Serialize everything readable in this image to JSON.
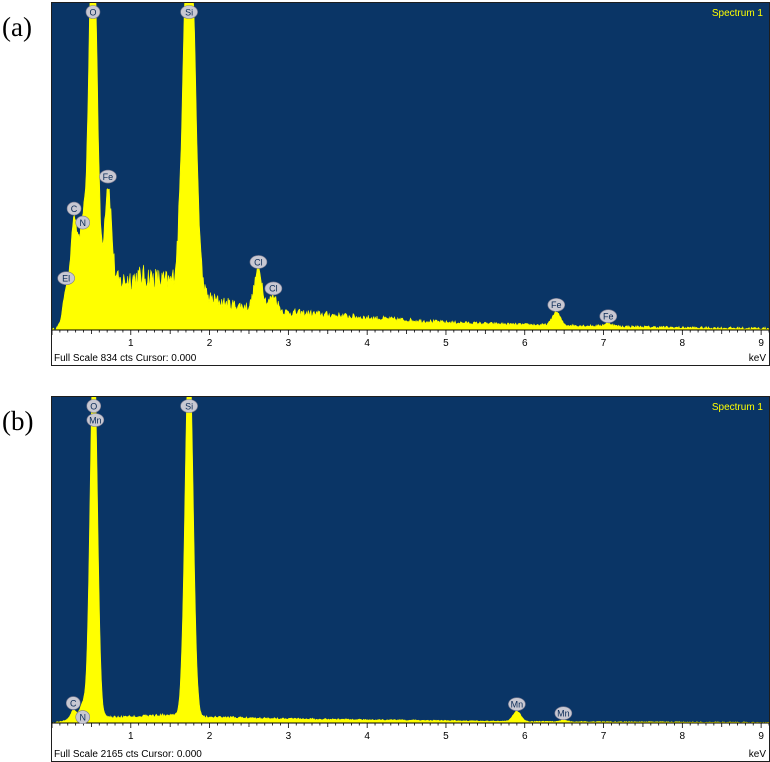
{
  "chart_data": [
    {
      "panel_label": "(a)",
      "type": "area",
      "spectrum_label": "Spectrum 1",
      "xlabel": "keV",
      "footer": "Full Scale 834 cts Cursor: 0.000",
      "xlim": [
        0,
        9.1
      ],
      "ylim": [
        0,
        834
      ],
      "x_ticks": [
        1,
        2,
        3,
        4,
        5,
        6,
        7,
        8,
        9
      ],
      "colors": {
        "plot_bg": "#0a3566",
        "fill": "#ffff00",
        "badge": "#c8c8d2"
      },
      "background": {
        "points": [
          [
            0.2,
            18
          ],
          [
            0.35,
            60
          ],
          [
            0.45,
            50
          ],
          [
            0.8,
            120
          ],
          [
            1.0,
            135
          ],
          [
            1.2,
            140
          ],
          [
            1.5,
            125
          ],
          [
            1.9,
            90
          ],
          [
            2.2,
            70
          ],
          [
            2.6,
            55
          ],
          [
            3.0,
            46
          ],
          [
            3.5,
            40
          ],
          [
            4.0,
            32
          ],
          [
            5.0,
            20
          ],
          [
            6.0,
            14
          ],
          [
            7.0,
            10
          ],
          [
            8.0,
            6
          ],
          [
            9.1,
            4
          ]
        ],
        "noise": 14
      },
      "peaks": [
        {
          "label": "El",
          "x": 0.18,
          "height": 90,
          "width": 0.04
        },
        {
          "label": "C",
          "x": 0.28,
          "height": 250,
          "width": 0.04
        },
        {
          "label": "N",
          "x": 0.39,
          "height": 210,
          "width": 0.04
        },
        {
          "label": "O",
          "x": 0.52,
          "height": 1100,
          "width": 0.05
        },
        {
          "label": "Fe",
          "x": 0.71,
          "height": 280,
          "width": 0.045
        },
        {
          "label": "Si",
          "x": 1.74,
          "height": 1100,
          "width": 0.07
        },
        {
          "label": "Cl",
          "x": 2.62,
          "height": 105,
          "width": 0.05
        },
        {
          "label": "Cl",
          "x": 2.81,
          "height": 40,
          "width": 0.05
        },
        {
          "label": "Fe",
          "x": 6.4,
          "height": 35,
          "width": 0.05
        },
        {
          "label": "Fe",
          "x": 7.06,
          "height": 8,
          "width": 0.05
        }
      ]
    },
    {
      "panel_label": "(b)",
      "type": "area",
      "spectrum_label": "Spectrum 1",
      "xlabel": "keV",
      "footer": "Full Scale 2165 cts Cursor: 0.000",
      "xlim": [
        0,
        9.1
      ],
      "ylim": [
        0,
        2165
      ],
      "x_ticks": [
        1,
        2,
        3,
        4,
        5,
        6,
        7,
        8,
        9
      ],
      "colors": {
        "plot_bg": "#0a3566",
        "fill": "#ffff00",
        "badge": "#c8c8d2"
      },
      "background": {
        "points": [
          [
            0.1,
            10
          ],
          [
            0.4,
            40
          ],
          [
            0.8,
            40
          ],
          [
            1.2,
            48
          ],
          [
            1.5,
            55
          ],
          [
            2.0,
            40
          ],
          [
            3.0,
            30
          ],
          [
            4.0,
            22
          ],
          [
            5.0,
            16
          ],
          [
            6.0,
            10
          ],
          [
            7.0,
            8
          ],
          [
            8.0,
            6
          ],
          [
            9.1,
            4
          ]
        ],
        "noise": 12
      },
      "peaks": [
        {
          "label": "C",
          "x": 0.27,
          "height": 60,
          "width": 0.035
        },
        {
          "label": "N",
          "x": 0.39,
          "height": 90,
          "width": 0.04
        },
        {
          "label": "O",
          "x": 0.53,
          "height": 2600,
          "width": 0.045
        },
        {
          "label": "Mn",
          "x": 0.55,
          "height": 0,
          "width": 0.04
        },
        {
          "label": "Si",
          "x": 1.74,
          "height": 2600,
          "width": 0.05
        },
        {
          "label": "Mn",
          "x": 5.9,
          "height": 70,
          "width": 0.05
        },
        {
          "label": "Mn",
          "x": 6.49,
          "height": 10,
          "width": 0.05
        }
      ]
    }
  ]
}
